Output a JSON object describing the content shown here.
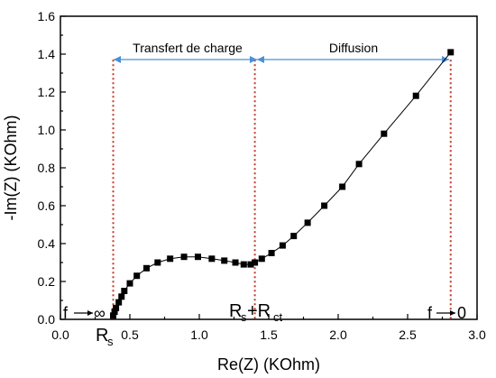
{
  "chart_data": {
    "type": "scatter",
    "xlabel": "Re(Z) (KOhm)",
    "ylabel": "-Im(Z) (KOhm)",
    "xlim": [
      0.0,
      3.0
    ],
    "ylim": [
      0.0,
      1.6
    ],
    "xticks": [
      "0.0",
      "0.5",
      "1.0",
      "1.5",
      "2.0",
      "2.5",
      "3.0"
    ],
    "yticks": [
      "0.0",
      "0.2",
      "0.4",
      "0.6",
      "0.8",
      "1.0",
      "1.2",
      "1.4",
      "1.6"
    ],
    "grid": false,
    "points": [
      [
        0.38,
        0.02
      ],
      [
        0.39,
        0.04
      ],
      [
        0.4,
        0.06
      ],
      [
        0.42,
        0.09
      ],
      [
        0.44,
        0.12
      ],
      [
        0.46,
        0.15
      ],
      [
        0.5,
        0.19
      ],
      [
        0.55,
        0.23
      ],
      [
        0.62,
        0.27
      ],
      [
        0.7,
        0.3
      ],
      [
        0.79,
        0.32
      ],
      [
        0.89,
        0.33
      ],
      [
        0.99,
        0.33
      ],
      [
        1.09,
        0.32
      ],
      [
        1.18,
        0.31
      ],
      [
        1.26,
        0.3
      ],
      [
        1.32,
        0.29
      ],
      [
        1.37,
        0.29
      ],
      [
        1.4,
        0.3
      ],
      [
        1.45,
        0.32
      ],
      [
        1.52,
        0.35
      ],
      [
        1.6,
        0.39
      ],
      [
        1.68,
        0.44
      ],
      [
        1.78,
        0.51
      ],
      [
        1.9,
        0.6
      ],
      [
        2.03,
        0.7
      ],
      [
        2.15,
        0.82
      ],
      [
        2.33,
        0.98
      ],
      [
        2.56,
        1.18
      ],
      [
        2.81,
        1.41
      ]
    ],
    "vertical_markers": [
      0.38,
      1.4,
      2.81
    ],
    "annotations": {
      "charge_transfer": "Transfert de charge",
      "diffusion": "Diffusion",
      "rs_main": "R",
      "rs_sub": "s",
      "rsrct_main1": "R",
      "rsrct_sub1": "s",
      "rsrct_plus": "+R",
      "rsrct_sub2": "ct",
      "f_inf": "f",
      "inf": "∞",
      "f_zero": "f",
      "zero": "0"
    },
    "colors": {
      "markers_line": "#c0392b",
      "arrows": "#4a90d9",
      "data": "#000000"
    }
  }
}
